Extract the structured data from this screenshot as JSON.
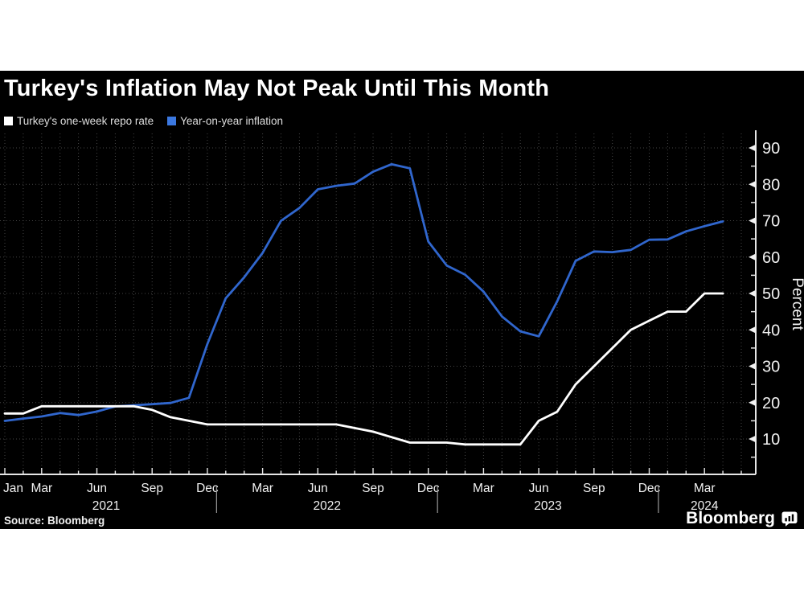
{
  "header": {
    "title": "Turkey's Inflation May Not Peak Until This Month"
  },
  "legend": [
    {
      "label": "Turkey's one-week repo rate",
      "swatch_color": "#ffffff",
      "swatch_icon": "white-square-swatch-icon"
    },
    {
      "label": "Year-on-year inflation",
      "swatch_color": "#3b78e0",
      "swatch_icon": "blue-square-swatch-icon"
    }
  ],
  "footer": {
    "source_label": "Source: Bloomberg",
    "brand": "Bloomberg",
    "brand_icon": "bloomberg-terminal-bubble-icon"
  },
  "chart_data": {
    "type": "line",
    "title": "Turkey's Inflation May Not Peak Until This Month",
    "x_unit": "month",
    "x_range": [
      "Jan 2021",
      "Apr 2024"
    ],
    "months": [
      "Jan 2021",
      "Feb 2021",
      "Mar 2021",
      "Apr 2021",
      "May 2021",
      "Jun 2021",
      "Jul 2021",
      "Aug 2021",
      "Sep 2021",
      "Oct 2021",
      "Nov 2021",
      "Dec 2021",
      "Jan 2022",
      "Feb 2022",
      "Mar 2022",
      "Apr 2022",
      "May 2022",
      "Jun 2022",
      "Jul 2022",
      "Aug 2022",
      "Sep 2022",
      "Oct 2022",
      "Nov 2022",
      "Dec 2022",
      "Jan 2023",
      "Feb 2023",
      "Mar 2023",
      "Apr 2023",
      "May 2023",
      "Jun 2023",
      "Jul 2023",
      "Aug 2023",
      "Sep 2023",
      "Oct 2023",
      "Nov 2023",
      "Dec 2023",
      "Jan 2024",
      "Feb 2024",
      "Mar 2024",
      "Apr 2024"
    ],
    "series": [
      {
        "name": "Turkey's one-week repo rate",
        "color": "#ffffff",
        "values": [
          17,
          17,
          19,
          19,
          19,
          19,
          19,
          19,
          18,
          16,
          15,
          14,
          14,
          14,
          14,
          14,
          14,
          14,
          14,
          13,
          12,
          10.5,
          9,
          9,
          9,
          8.5,
          8.5,
          8.5,
          8.5,
          15,
          17.5,
          25,
          30,
          35,
          40,
          42.5,
          45,
          45,
          50,
          50
        ]
      },
      {
        "name": "Year-on-year inflation",
        "color": "#3066cd",
        "values": [
          14.97,
          15.61,
          16.19,
          17.14,
          16.59,
          17.53,
          18.95,
          19.25,
          19.58,
          19.89,
          21.31,
          36.08,
          48.69,
          54.44,
          61.14,
          69.97,
          73.5,
          78.62,
          79.6,
          80.21,
          83.45,
          85.51,
          84.39,
          64.27,
          57.68,
          55.18,
          50.51,
          43.68,
          39.59,
          38.21,
          47.83,
          58.94,
          61.53,
          61.36,
          61.98,
          64.77,
          64.86,
          67.07,
          68.5,
          69.8
        ]
      }
    ],
    "ylabel": "Percent",
    "ylim": [
      0,
      92
    ],
    "y_major_ticks": [
      10,
      20,
      30,
      40,
      50,
      60,
      70,
      80,
      90
    ],
    "y_minor_ticks": [
      5,
      15,
      25,
      35,
      45,
      55,
      65,
      75,
      85
    ],
    "axis_side": "right",
    "grid": "dotted: vertical per month, horizontal per 10 units",
    "legend_position": "top-left",
    "x_tick_labels": [
      {
        "n": 0,
        "label": "Jan"
      },
      {
        "n": 2,
        "label": "Mar"
      },
      {
        "n": 5,
        "label": "Jun"
      },
      {
        "n": 8,
        "label": "Sep"
      },
      {
        "n": 11,
        "label": "Dec"
      },
      {
        "n": 14,
        "label": "Mar"
      },
      {
        "n": 17,
        "label": "Jun"
      },
      {
        "n": 20,
        "label": "Sep"
      },
      {
        "n": 23,
        "label": "Dec"
      },
      {
        "n": 26,
        "label": "Mar"
      },
      {
        "n": 29,
        "label": "Jun"
      },
      {
        "n": 32,
        "label": "Sep"
      },
      {
        "n": 35,
        "label": "Dec"
      },
      {
        "n": 38,
        "label": "Mar"
      }
    ],
    "year_labels": [
      {
        "label": "2021",
        "anchor_n": 5.5
      },
      {
        "label": "2022",
        "anchor_n": 17.5
      },
      {
        "label": "2023",
        "anchor_n": 29.5
      },
      {
        "label": "2024",
        "anchor_n": 38
      }
    ],
    "year_separators_n": [
      11.5,
      23.5,
      35.5
    ]
  }
}
